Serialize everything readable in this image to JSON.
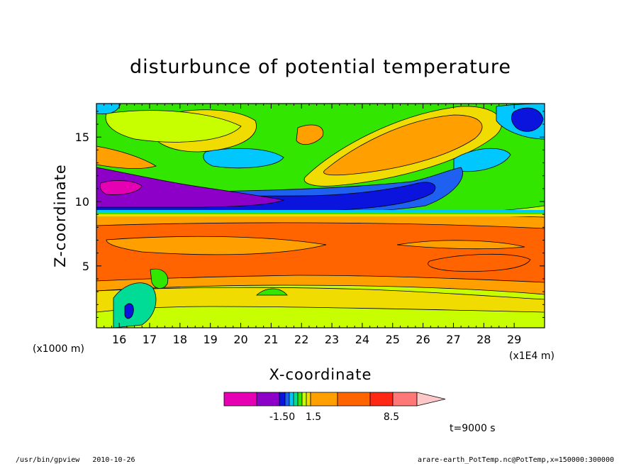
{
  "chart_data": {
    "type": "heatmap",
    "title": "disturbunce of potential temperature",
    "xlabel": "X-coordinate",
    "ylabel": "Z-coordinate",
    "x_unit": "(x1E4 m)",
    "y_unit": "(x1000 m)",
    "xlim": [
      15.25,
      30.0
    ],
    "ylim": [
      0.2,
      17.6
    ],
    "x_ticks": [
      "16",
      "17",
      "18",
      "19",
      "20",
      "21",
      "22",
      "23",
      "24",
      "25",
      "26",
      "27",
      "28",
      "29"
    ],
    "y_ticks": [
      "5",
      "10",
      "15"
    ],
    "colorbar": {
      "colors": [
        "#e600b4",
        "#8c00c8",
        "#0a14dc",
        "#1e60f0",
        "#00c8ff",
        "#00dc96",
        "#32e600",
        "#c8ff00",
        "#f0dc00",
        "#ffa000",
        "#ff6400",
        "#ff2814",
        "#ff7878",
        "#ffc8c8"
      ],
      "labels": [
        "-1.50",
        "1.5",
        "8.5"
      ]
    },
    "time_label": "t=9000 s",
    "footer_left": "/usr/bin/gpview   2010-10-26",
    "footer_right": "arare-earth_PotTemp.nc@PotTemp,x=150000:300000"
  }
}
